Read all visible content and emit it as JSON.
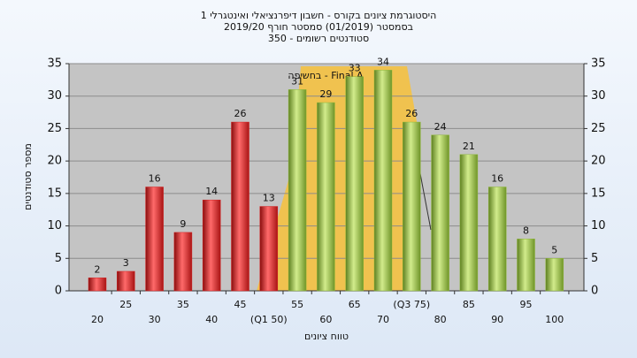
{
  "chart_data": {
    "type": "bar",
    "title": "היסטוגרמת ציונים בקורס - חשבון דיפרנציאלי ואינטגרלי 1",
    "subtitle": "בסמסטר  (01/2019)  סמסטר חורף 2019/20",
    "subtitle2": "סטודנטים רשומים - 350",
    "annotation": "בחשיפה - Final A",
    "y_label": "מספר סטודנטים",
    "x_label": "טווח ציונים",
    "categories": [
      "20",
      "25",
      "30",
      "35",
      "40",
      "45",
      "(Q1 50)",
      "55",
      "60",
      "65",
      "70",
      "(Q3 75)",
      "80",
      "85",
      "90",
      "95",
      "100"
    ],
    "values": [
      2,
      3,
      16,
      9,
      14,
      26,
      13,
      31,
      29,
      33,
      34,
      26,
      24,
      21,
      16,
      8,
      5
    ],
    "colors": [
      "#d42020",
      "#d42020",
      "#d42020",
      "#d42020",
      "#d42020",
      "#d42020",
      "#d42020",
      "#8fb83a",
      "#8fb83a",
      "#8fb83a",
      "#8fb83a",
      "#8fb83a",
      "#8fb83a",
      "#8fb83a",
      "#8fb83a",
      "#8fb83a",
      "#8fb83a"
    ],
    "ylim": [
      0,
      35
    ],
    "yticks": [
      0,
      5,
      10,
      15,
      20,
      25,
      30,
      35
    ],
    "y2lim": [
      0,
      35
    ],
    "y2ticks": [
      0,
      5,
      10,
      15,
      20,
      25,
      30,
      35
    ],
    "grid": true
  }
}
